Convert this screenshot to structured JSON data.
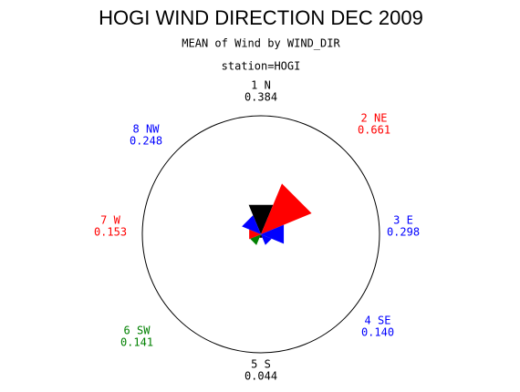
{
  "chart_data": {
    "type": "star",
    "title": "HOGI WIND DIRECTION DEC 2009",
    "subtitle": "MEAN of Wind by WIND_DIR",
    "by_line": "station=HOGI",
    "categories": [
      "1 N",
      "2 NE",
      "3 E",
      "4 SE",
      "5 S",
      "6 SW",
      "7 W",
      "8 NW"
    ],
    "values": [
      0.384,
      0.661,
      0.298,
      0.14,
      0.044,
      0.141,
      0.153,
      0.248
    ],
    "value_labels": [
      "0.384",
      "0.661",
      "0.298",
      "0.140",
      "0.044",
      "0.141",
      "0.153",
      "0.248"
    ],
    "colors": [
      "#000000",
      "#ff0000",
      "#0000ff",
      "#0000ff",
      "#000000",
      "#008000",
      "#ff0000",
      "#0000ff"
    ]
  }
}
